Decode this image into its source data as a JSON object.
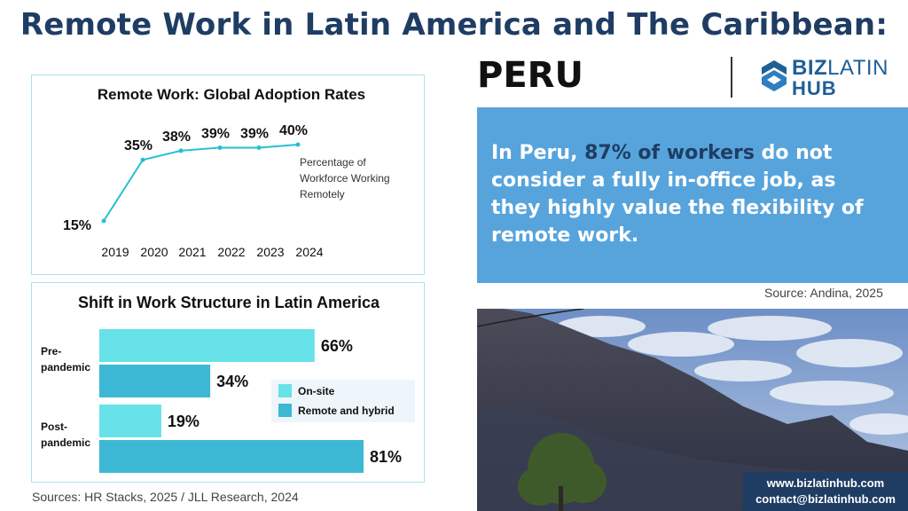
{
  "header": {
    "title": "Remote Work in Latin America and The Caribbean:",
    "country": "PERU"
  },
  "logo": {
    "text_bold": "BIZ",
    "text_light": "LATIN",
    "text_bottom": "HUB",
    "icon": "bizlatinhub-logo-icon"
  },
  "info": {
    "prefix": "In Peru, ",
    "highlight": "87% of workers",
    "suffix": " do not consider a fully in-office job, as they highly value the flexibility of remote work."
  },
  "source_right": "Source:  Andina, 2025",
  "source_left": "Sources: HR Stacks, 2025 /  JLL Research, 2024",
  "contact": {
    "website": "www.bizlatinhub.com",
    "email": "contact@bizlatinhub.com"
  },
  "colors": {
    "title": "#1f3d63",
    "line": "#26c0d0",
    "onsite": "#66e2e8",
    "remote": "#3db8d4",
    "info_bg": "#57a4dc"
  },
  "chart_data": [
    {
      "type": "line",
      "title": "Remote Work: Global Adoption Rates",
      "x": [
        "2019",
        "2020",
        "2021",
        "2022",
        "2023",
        "2024"
      ],
      "series": [
        {
          "name": "Percentage of Workforce Working Remotely",
          "values": [
            15,
            35,
            38,
            39,
            39,
            40
          ]
        }
      ],
      "data_labels": [
        "15%",
        "35%",
        "38%",
        "39%",
        "39%",
        "40%"
      ],
      "legend": "Percentage of Workforce Working Remotely",
      "ylim": [
        15,
        40
      ],
      "grid": false
    },
    {
      "type": "bar",
      "orientation": "horizontal",
      "title": "Shift in Work Structure in Latin America",
      "categories": [
        "Pre-pandemic",
        "Post-pandemic"
      ],
      "series": [
        {
          "name": "On-site",
          "values": [
            66,
            19
          ]
        },
        {
          "name": "Remote and hybrid",
          "values": [
            34,
            81
          ]
        }
      ],
      "value_labels": [
        [
          "66%",
          "34%"
        ],
        [
          "19%",
          "81%"
        ]
      ],
      "xlim": [
        0,
        81
      ],
      "legend_position": "right",
      "grid": false
    }
  ]
}
